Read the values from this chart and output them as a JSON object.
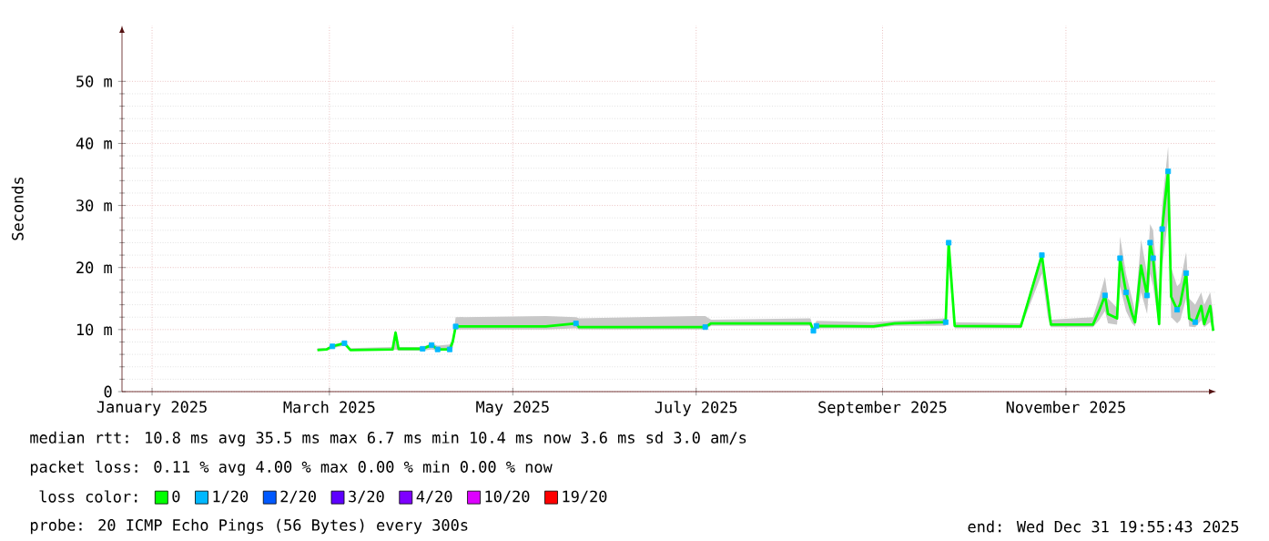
{
  "chart_data": {
    "type": "line",
    "ylabel": "Seconds",
    "legend_title": "loss color:",
    "legend": "bottom",
    "grid": true,
    "xlim": [
      "2024-12-22",
      "2025-12-21"
    ],
    "xticks": [
      {
        "value": "2025-01-01",
        "label": "January 2025"
      },
      {
        "value": "2025-03-01",
        "label": "March 2025"
      },
      {
        "value": "2025-05-01",
        "label": "May 2025"
      },
      {
        "value": "2025-07-01",
        "label": "July 2025"
      },
      {
        "value": "2025-09-01",
        "label": "September 2025"
      },
      {
        "value": "2025-11-01",
        "label": "November 2025"
      }
    ],
    "ylim": [
      0,
      59
    ],
    "yticks": [
      0,
      {
        "value": 10,
        "label": "10 m"
      },
      {
        "value": 20,
        "label": "20 m"
      },
      {
        "value": 30,
        "label": "30 m"
      },
      {
        "value": 40,
        "label": "40 m"
      },
      {
        "value": 50,
        "label": "50 m"
      }
    ],
    "x": [
      "2025-02-25",
      "2025-02-28",
      "2025-03-02",
      "2025-03-06",
      "2025-03-08",
      "2025-03-22",
      "2025-03-23",
      "2025-03-24",
      "2025-04-01",
      "2025-04-04",
      "2025-04-06",
      "2025-04-10",
      "2025-04-11",
      "2025-04-12",
      "2025-05-12",
      "2025-05-22",
      "2025-05-23",
      "2025-07-04",
      "2025-07-06",
      "2025-08-08",
      "2025-08-09",
      "2025-08-10",
      "2025-08-29",
      "2025-09-05",
      "2025-09-22",
      "2025-09-23",
      "2025-09-25",
      "2025-10-17",
      "2025-10-24",
      "2025-10-26",
      "2025-10-27",
      "2025-11-10",
      "2025-11-12",
      "2025-11-14",
      "2025-11-15",
      "2025-11-18",
      "2025-11-19",
      "2025-11-21",
      "2025-11-23",
      "2025-11-24",
      "2025-11-26",
      "2025-11-28",
      "2025-11-29",
      "2025-11-30",
      "2025-12-02",
      "2025-12-03",
      "2025-12-05",
      "2025-12-06",
      "2025-12-08",
      "2025-12-09",
      "2025-12-11",
      "2025-12-12",
      "2025-12-14",
      "2025-12-16",
      "2025-12-17",
      "2025-12-19",
      "2025-12-20"
    ],
    "series": [
      {
        "name": "0",
        "color": "#00ff00",
        "values": [
          6.7,
          6.8,
          7.3,
          7.8,
          6.7,
          6.8,
          9.5,
          6.9,
          6.9,
          7.5,
          6.8,
          6.8,
          8.0,
          10.5,
          10.5,
          11.0,
          10.4,
          10.4,
          11.0,
          11.0,
          9.8,
          10.6,
          10.5,
          11.0,
          11.2,
          24.0,
          10.6,
          10.5,
          22.0,
          14.7,
          10.8,
          10.8,
          13.0,
          15.5,
          12.5,
          11.8,
          21.5,
          16.0,
          12.5,
          11.2,
          20.3,
          15.5,
          24.0,
          21.5,
          10.9,
          26.2,
          35.5,
          15.3,
          13.2,
          14.1,
          19.1,
          11.8,
          11.2,
          13.8,
          10.9,
          13.8,
          9.8
        ],
        "lower": [
          6.6,
          6.6,
          7.0,
          7.4,
          6.6,
          6.6,
          6.8,
          6.6,
          6.6,
          6.8,
          6.6,
          6.6,
          7.0,
          10.0,
          10.0,
          10.2,
          10.0,
          10.0,
          10.6,
          10.6,
          9.6,
          10.2,
          10.2,
          10.6,
          10.6,
          20.0,
          10.2,
          10.2,
          19.0,
          12.0,
          10.4,
          10.4,
          11.5,
          13.0,
          11.0,
          10.8,
          17.0,
          13.0,
          11.0,
          10.5,
          16.0,
          12.5,
          19.0,
          17.0,
          10.4,
          20.0,
          28.0,
          12.0,
          11.0,
          11.5,
          15.0,
          10.5,
          10.4,
          11.5,
          10.4,
          11.2,
          9.6
        ],
        "upper": [
          7.0,
          7.0,
          7.6,
          8.0,
          7.0,
          7.2,
          10.0,
          7.2,
          7.2,
          7.8,
          7.4,
          7.6,
          8.5,
          12.0,
          12.2,
          12.0,
          11.8,
          12.2,
          11.6,
          11.8,
          10.4,
          11.4,
          11.2,
          11.4,
          11.8,
          24.5,
          11.2,
          11.0,
          22.5,
          15.5,
          11.6,
          12.0,
          15.0,
          18.5,
          15.0,
          13.5,
          25.0,
          19.0,
          15.0,
          13.0,
          24.5,
          19.0,
          27.0,
          26.0,
          14.0,
          30.0,
          39.5,
          20.0,
          17.0,
          17.5,
          22.5,
          15.0,
          14.0,
          16.0,
          14.0,
          16.0,
          12.5
        ]
      },
      {
        "name": "1/20",
        "color": "#00b8ff",
        "type": "scatter",
        "marker": "square",
        "values": [
          null,
          null,
          7.3,
          7.8,
          null,
          null,
          null,
          null,
          6.9,
          7.5,
          6.8,
          6.8,
          null,
          10.5,
          null,
          11.0,
          null,
          10.4,
          null,
          null,
          9.8,
          10.6,
          null,
          null,
          11.2,
          24.0,
          null,
          null,
          22.0,
          null,
          null,
          null,
          null,
          15.5,
          null,
          null,
          21.5,
          16.0,
          null,
          null,
          null,
          15.5,
          24.0,
          21.5,
          null,
          26.2,
          35.5,
          null,
          13.2,
          null,
          19.1,
          null,
          11.2,
          null,
          null,
          null,
          null
        ]
      },
      {
        "name": "2/20",
        "color": "#0059ff",
        "type": "scatter",
        "marker": "square",
        "values": [
          null,
          null,
          null,
          null,
          null,
          null,
          null,
          null,
          null,
          null,
          null,
          null,
          null,
          null,
          null,
          null,
          null,
          null,
          null,
          null,
          null,
          null,
          null,
          null,
          null,
          null,
          null,
          null,
          null,
          null,
          null,
          null,
          null,
          null,
          null,
          null,
          null,
          null,
          null,
          null,
          null,
          null,
          null,
          null,
          null,
          null,
          null,
          null,
          null,
          null,
          null,
          null,
          null,
          null,
          null,
          null,
          null
        ]
      },
      {
        "name": "3/20",
        "color": "#5e00ff",
        "type": "scatter",
        "marker": "square",
        "values": [
          null,
          null,
          null,
          null,
          null,
          null,
          null,
          null,
          null,
          null,
          null,
          null,
          null,
          null,
          null,
          null,
          null,
          null,
          null,
          null,
          null,
          null,
          null,
          null,
          null,
          null,
          null,
          null,
          null,
          null,
          null,
          null,
          null,
          null,
          null,
          null,
          null,
          null,
          null,
          null,
          null,
          null,
          null,
          null,
          null,
          null,
          null,
          null,
          null,
          null,
          null,
          null,
          null,
          null,
          null,
          null,
          null
        ]
      },
      {
        "name": "4/20",
        "color": "#7e00ff",
        "type": "scatter",
        "marker": "square",
        "values": [
          null,
          null,
          null,
          null,
          null,
          null,
          null,
          null,
          null,
          null,
          null,
          null,
          null,
          null,
          null,
          null,
          null,
          null,
          null,
          null,
          null,
          null,
          null,
          null,
          null,
          null,
          null,
          null,
          null,
          null,
          null,
          null,
          null,
          null,
          null,
          null,
          null,
          null,
          null,
          null,
          null,
          null,
          null,
          null,
          null,
          null,
          null,
          null,
          null,
          null,
          null,
          null,
          null,
          null,
          null,
          null,
          null
        ]
      },
      {
        "name": "10/20",
        "color": "#dd00ff",
        "type": "scatter",
        "marker": "square",
        "values": [
          null,
          null,
          null,
          null,
          null,
          null,
          null,
          null,
          null,
          null,
          null,
          null,
          null,
          null,
          null,
          null,
          null,
          null,
          null,
          null,
          null,
          null,
          null,
          null,
          null,
          null,
          null,
          null,
          null,
          null,
          null,
          null,
          null,
          null,
          null,
          null,
          null,
          null,
          null,
          null,
          null,
          null,
          null,
          null,
          null,
          null,
          null,
          null,
          null,
          null,
          null,
          null,
          null,
          null,
          null,
          null,
          null
        ]
      },
      {
        "name": "19/20",
        "color": "#ff0000",
        "type": "scatter",
        "marker": "square",
        "values": [
          null,
          null,
          null,
          null,
          null,
          null,
          null,
          null,
          null,
          null,
          null,
          null,
          null,
          null,
          null,
          null,
          null,
          null,
          null,
          null,
          null,
          null,
          null,
          null,
          null,
          null,
          null,
          null,
          null,
          null,
          null,
          null,
          null,
          null,
          null,
          null,
          null,
          null,
          null,
          null,
          null,
          null,
          null,
          null,
          null,
          null,
          null,
          null,
          null,
          null,
          null,
          null,
          null,
          null,
          null,
          null,
          null
        ]
      }
    ],
    "annotations": [
      "median rtt:  10.8 ms avg  35.5 ms max  6.7 ms min  10.4 ms now  3.6 ms sd  3.0   am/s",
      "packet loss: 0.11 % avg  4.00 % max  0.00 % min  0.00 % now",
      "probe:       20 ICMP Echo Pings (56 Bytes) every 300s",
      "end: Wed Dec 31 19:55:43 2025"
    ]
  }
}
